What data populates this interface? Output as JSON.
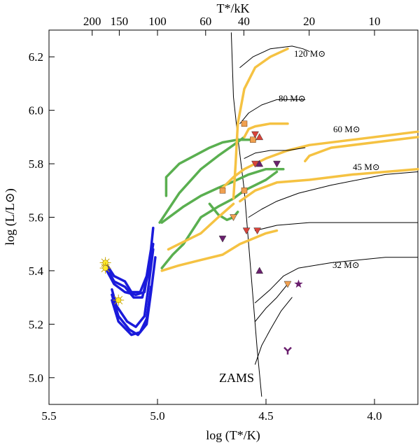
{
  "chart_data": {
    "type": "line",
    "title": "",
    "xlabel": "log (T*/K)",
    "ylabel": "log (L/L⊙)",
    "top_xlabel": "T*/kK",
    "xlim": [
      5.5,
      3.8
    ],
    "ylim": [
      4.9,
      6.3
    ],
    "x_ticks": [
      "5.5",
      "5.0",
      "4.5",
      "4.0"
    ],
    "y_ticks": [
      "5.0",
      "5.2",
      "5.4",
      "5.6",
      "5.8",
      "6.0",
      "6.2"
    ],
    "top_ticks": [
      "200",
      "150",
      "100",
      "60",
      "40",
      "20",
      "10"
    ],
    "zams_label": "ZAMS",
    "track_labels": [
      "120 M⊙",
      "80 M⊙",
      "60 M⊙",
      "45 M⊙",
      "32 M⊙"
    ],
    "colors": {
      "blue": "#1a1adb",
      "green": "#5aaf50",
      "yellow": "#f5c242",
      "black": "#000000",
      "orange": "#f0a050",
      "red": "#d9433a",
      "purple": "#6a1f6e"
    },
    "series": [
      {
        "name": "ZAMS",
        "color": "black",
        "points": [
          [
            4.66,
            6.29
          ],
          [
            4.65,
            6.05
          ],
          [
            4.63,
            5.9
          ],
          [
            4.6,
            5.7
          ],
          [
            4.58,
            5.5
          ],
          [
            4.56,
            5.3
          ],
          [
            4.54,
            5.1
          ],
          [
            4.52,
            4.93
          ]
        ]
      },
      {
        "name": "blue-1",
        "color": "blue",
        "points": [
          [
            5.24,
            5.43
          ],
          [
            5.2,
            5.38
          ],
          [
            5.15,
            5.36
          ],
          [
            5.12,
            5.32
          ],
          [
            5.08,
            5.32
          ],
          [
            5.05,
            5.38
          ],
          [
            5.03,
            5.48
          ],
          [
            5.02,
            5.56
          ]
        ]
      },
      {
        "name": "blue-2",
        "color": "blue",
        "points": [
          [
            5.24,
            5.42
          ],
          [
            5.2,
            5.36
          ],
          [
            5.15,
            5.34
          ],
          [
            5.11,
            5.3
          ],
          [
            5.07,
            5.3
          ],
          [
            5.04,
            5.4
          ],
          [
            5.02,
            5.5
          ]
        ]
      },
      {
        "name": "blue-3",
        "color": "blue",
        "points": [
          [
            5.24,
            5.41
          ],
          [
            5.2,
            5.35
          ],
          [
            5.15,
            5.32
          ],
          [
            5.1,
            5.31
          ],
          [
            5.06,
            5.32
          ],
          [
            5.04,
            5.42
          ]
        ]
      },
      {
        "name": "blue-4",
        "color": "blue",
        "points": [
          [
            5.21,
            5.33
          ],
          [
            5.19,
            5.27
          ],
          [
            5.14,
            5.21
          ],
          [
            5.1,
            5.19
          ],
          [
            5.06,
            5.23
          ],
          [
            5.04,
            5.35
          ],
          [
            5.02,
            5.48
          ]
        ]
      },
      {
        "name": "blue-5",
        "color": "blue",
        "points": [
          [
            5.21,
            5.31
          ],
          [
            5.18,
            5.23
          ],
          [
            5.13,
            5.18
          ],
          [
            5.09,
            5.16
          ],
          [
            5.05,
            5.2
          ],
          [
            5.03,
            5.32
          ],
          [
            5.01,
            5.45
          ]
        ]
      },
      {
        "name": "blue-6",
        "color": "blue",
        "points": [
          [
            5.21,
            5.29
          ],
          [
            5.18,
            5.21
          ],
          [
            5.12,
            5.16
          ],
          [
            5.08,
            5.17
          ],
          [
            5.05,
            5.22
          ],
          [
            5.03,
            5.34
          ]
        ]
      },
      {
        "name": "green-120",
        "color": "green",
        "points": [
          [
            4.99,
            5.58
          ],
          [
            4.9,
            5.69
          ],
          [
            4.8,
            5.78
          ],
          [
            4.72,
            5.83
          ],
          [
            4.65,
            5.87
          ],
          [
            4.6,
            5.9
          ]
        ]
      },
      {
        "name": "green-80",
        "color": "green",
        "points": [
          [
            4.96,
            5.68
          ],
          [
            4.96,
            5.75
          ],
          [
            4.9,
            5.8
          ],
          [
            4.83,
            5.83
          ],
          [
            4.76,
            5.86
          ],
          [
            4.7,
            5.88
          ],
          [
            4.63,
            5.89
          ],
          [
            4.55,
            5.89
          ]
        ]
      },
      {
        "name": "green-60",
        "color": "green",
        "points": [
          [
            4.98,
            5.58
          ],
          [
            4.93,
            5.61
          ],
          [
            4.88,
            5.64
          ],
          [
            4.8,
            5.68
          ],
          [
            4.72,
            5.71
          ],
          [
            4.66,
            5.73
          ],
          [
            4.58,
            5.76
          ],
          [
            4.5,
            5.78
          ],
          [
            4.42,
            5.78
          ]
        ]
      },
      {
        "name": "green-45",
        "color": "green",
        "points": [
          [
            4.98,
            5.41
          ],
          [
            4.95,
            5.44
          ],
          [
            4.93,
            5.46
          ],
          [
            4.88,
            5.5
          ],
          [
            4.8,
            5.6
          ],
          [
            4.72,
            5.64
          ],
          [
            4.65,
            5.67
          ],
          [
            4.6,
            5.7
          ],
          [
            4.5,
            5.74
          ],
          [
            4.45,
            5.77
          ]
        ]
      },
      {
        "name": "green-loop",
        "color": "green",
        "points": [
          [
            4.76,
            5.65
          ],
          [
            4.72,
            5.61
          ],
          [
            4.68,
            5.59
          ],
          [
            4.65,
            5.6
          ],
          [
            4.63,
            5.62
          ]
        ]
      },
      {
        "name": "yellow-120",
        "color": "yellow",
        "points": [
          [
            4.65,
            5.67
          ],
          [
            4.64,
            5.8
          ],
          [
            4.63,
            5.95
          ],
          [
            4.6,
            6.08
          ],
          [
            4.55,
            6.16
          ],
          [
            4.48,
            6.2
          ],
          [
            4.4,
            6.23
          ]
        ]
      },
      {
        "name": "yellow-80",
        "color": "yellow",
        "points": [
          [
            4.6,
            5.9
          ],
          [
            4.58,
            5.93
          ],
          [
            4.55,
            5.94
          ],
          [
            4.48,
            5.95
          ],
          [
            4.4,
            5.95
          ]
        ]
      },
      {
        "name": "yellow-60",
        "color": "yellow",
        "points": [
          [
            4.7,
            5.71
          ],
          [
            4.65,
            5.75
          ],
          [
            4.6,
            5.78
          ],
          [
            4.5,
            5.82
          ],
          [
            4.4,
            5.85
          ],
          [
            4.3,
            5.87
          ],
          [
            4.1,
            5.89
          ],
          [
            3.8,
            5.92
          ]
        ]
      },
      {
        "name": "yellow-60b",
        "color": "yellow",
        "points": [
          [
            4.32,
            5.81
          ],
          [
            4.3,
            5.83
          ],
          [
            4.2,
            5.86
          ],
          [
            4.0,
            5.88
          ],
          [
            3.8,
            5.9
          ]
        ]
      },
      {
        "name": "yellow-45",
        "color": "yellow",
        "points": [
          [
            4.62,
            5.66
          ],
          [
            4.55,
            5.7
          ],
          [
            4.45,
            5.73
          ],
          [
            4.3,
            5.74
          ],
          [
            4.1,
            5.76
          ],
          [
            3.8,
            5.78
          ]
        ]
      },
      {
        "name": "yellow-45b",
        "color": "yellow",
        "points": [
          [
            4.95,
            5.48
          ],
          [
            4.9,
            5.5
          ],
          [
            4.8,
            5.54
          ],
          [
            4.72,
            5.6
          ],
          [
            4.65,
            5.65
          ]
        ]
      },
      {
        "name": "yellow-32",
        "color": "yellow",
        "points": [
          [
            4.98,
            5.4
          ],
          [
            4.9,
            5.42
          ],
          [
            4.8,
            5.44
          ],
          [
            4.7,
            5.46
          ],
          [
            4.62,
            5.5
          ],
          [
            4.5,
            5.54
          ],
          [
            4.45,
            5.55
          ]
        ]
      },
      {
        "name": "black-120",
        "color": "black",
        "points": [
          [
            4.62,
            6.16
          ],
          [
            4.56,
            6.2
          ],
          [
            4.48,
            6.23
          ],
          [
            4.38,
            6.24
          ],
          [
            4.33,
            6.23
          ],
          [
            4.3,
            6.22
          ]
        ]
      },
      {
        "name": "black-80",
        "color": "black",
        "points": [
          [
            4.62,
            5.95
          ],
          [
            4.58,
            5.99
          ],
          [
            4.52,
            6.02
          ],
          [
            4.45,
            6.04
          ],
          [
            4.4,
            6.04
          ],
          [
            4.32,
            6.04
          ]
        ]
      },
      {
        "name": "black-60",
        "color": "black",
        "points": [
          [
            4.6,
            5.82
          ],
          [
            4.55,
            5.84
          ],
          [
            4.48,
            5.85
          ],
          [
            4.4,
            5.85
          ],
          [
            4.32,
            5.86
          ]
        ]
      },
      {
        "name": "black-45",
        "color": "black",
        "points": [
          [
            4.58,
            5.6
          ],
          [
            4.52,
            5.63
          ],
          [
            4.45,
            5.66
          ],
          [
            4.35,
            5.69
          ],
          [
            4.2,
            5.72
          ],
          [
            3.95,
            5.76
          ],
          [
            3.8,
            5.77
          ]
        ]
      },
      {
        "name": "black-45b",
        "color": "black",
        "points": [
          [
            4.55,
            5.55
          ],
          [
            4.45,
            5.57
          ],
          [
            4.3,
            5.58
          ],
          [
            4.1,
            5.58
          ],
          [
            3.8,
            5.58
          ]
        ]
      },
      {
        "name": "black-32",
        "color": "black",
        "points": [
          [
            4.55,
            5.28
          ],
          [
            4.48,
            5.33
          ],
          [
            4.42,
            5.38
          ],
          [
            4.35,
            5.41
          ],
          [
            4.2,
            5.43
          ],
          [
            3.95,
            5.45
          ],
          [
            3.8,
            5.45
          ]
        ]
      },
      {
        "name": "black-32b",
        "color": "black",
        "points": [
          [
            4.55,
            5.21
          ],
          [
            4.5,
            5.26
          ],
          [
            4.45,
            5.3
          ],
          [
            4.4,
            5.35
          ]
        ]
      },
      {
        "name": "black-32c",
        "color": "black",
        "points": [
          [
            4.55,
            5.05
          ],
          [
            4.52,
            5.12
          ],
          [
            4.48,
            5.18
          ],
          [
            4.43,
            5.25
          ],
          [
            4.38,
            5.3
          ]
        ]
      }
    ],
    "markers": [
      {
        "shape": "square",
        "color": "orange",
        "x": 4.6,
        "y": 5.95
      },
      {
        "shape": "square",
        "color": "orange",
        "x": 4.56,
        "y": 5.89
      },
      {
        "shape": "square",
        "color": "orange",
        "x": 4.7,
        "y": 5.7
      },
      {
        "shape": "square",
        "color": "orange",
        "x": 4.6,
        "y": 5.7
      },
      {
        "shape": "tri-down",
        "color": "red",
        "x": 4.55,
        "y": 5.91
      },
      {
        "shape": "tri-up",
        "color": "red",
        "x": 4.53,
        "y": 5.9
      },
      {
        "shape": "tri-down",
        "color": "red",
        "x": 4.55,
        "y": 5.8
      },
      {
        "shape": "tri-up",
        "color": "purple",
        "x": 4.53,
        "y": 5.8
      },
      {
        "shape": "tri-down",
        "color": "purple",
        "x": 4.45,
        "y": 5.8
      },
      {
        "shape": "tri-down",
        "color": "orange",
        "x": 4.65,
        "y": 5.6
      },
      {
        "shape": "tri-down",
        "color": "red",
        "x": 4.59,
        "y": 5.55
      },
      {
        "shape": "tri-down",
        "color": "red",
        "x": 4.54,
        "y": 5.55
      },
      {
        "shape": "tri-down",
        "color": "purple",
        "x": 4.7,
        "y": 5.52
      },
      {
        "shape": "tri-up",
        "color": "purple",
        "x": 4.53,
        "y": 5.4
      },
      {
        "shape": "tri-down",
        "color": "orange",
        "x": 4.4,
        "y": 5.35
      },
      {
        "shape": "star",
        "color": "purple",
        "x": 4.35,
        "y": 5.35
      },
      {
        "shape": "y-tri",
        "color": "purple",
        "x": 4.4,
        "y": 5.1
      },
      {
        "shape": "sun",
        "color": "yellow",
        "x": 5.24,
        "y": 5.43
      },
      {
        "shape": "sun",
        "color": "yellow",
        "x": 5.24,
        "y": 5.41
      },
      {
        "shape": "sun",
        "color": "yellow",
        "x": 5.18,
        "y": 5.29
      }
    ]
  }
}
